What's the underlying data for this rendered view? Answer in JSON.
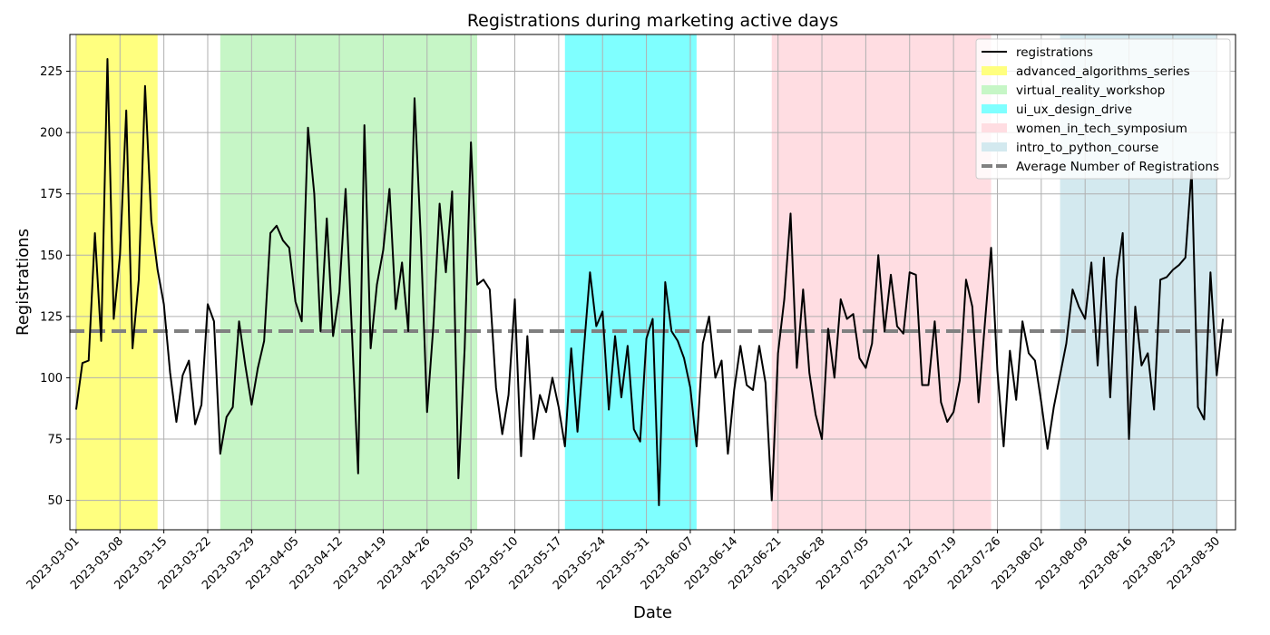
{
  "chart_data": {
    "type": "line",
    "title": "Registrations during marketing active days",
    "xlabel": "Date",
    "ylabel": "Registrations",
    "x_start": "2023-03-01",
    "x_end": "2023-08-30",
    "xlim": [
      "2023-02-28",
      "2023-09-02"
    ],
    "ylim": [
      38,
      240
    ],
    "yticks": [
      50,
      75,
      100,
      125,
      150,
      175,
      200,
      225
    ],
    "xticks": [
      "2023-03-01",
      "2023-03-08",
      "2023-03-15",
      "2023-03-22",
      "2023-03-29",
      "2023-04-05",
      "2023-04-12",
      "2023-04-19",
      "2023-04-26",
      "2023-05-03",
      "2023-05-10",
      "2023-05-17",
      "2023-05-24",
      "2023-05-31",
      "2023-06-07",
      "2023-06-14",
      "2023-06-21",
      "2023-06-28",
      "2023-07-05",
      "2023-07-12",
      "2023-07-19",
      "2023-07-26",
      "2023-08-02",
      "2023-08-09",
      "2023-08-16",
      "2023-08-23",
      "2023-08-30"
    ],
    "grid": true,
    "legend_position": "top-right",
    "series": [
      {
        "name": "registrations",
        "color": "#000000",
        "values": [
          87,
          106,
          107,
          159,
          115,
          230,
          124,
          150,
          209,
          112,
          140,
          219,
          164,
          144,
          130,
          102,
          82,
          101,
          107,
          81,
          89,
          130,
          123,
          69,
          84,
          88,
          123,
          105,
          89,
          104,
          115,
          159,
          162,
          156,
          153,
          131,
          123,
          202,
          175,
          119,
          165,
          117,
          135,
          177,
          119,
          61,
          203,
          112,
          138,
          152,
          177,
          128,
          147,
          119,
          214,
          157,
          86,
          121,
          171,
          143,
          176,
          59,
          112,
          196,
          138,
          140,
          136,
          96,
          77,
          93,
          132,
          68,
          117,
          75,
          93,
          86,
          100,
          88,
          72,
          112,
          78,
          111,
          143,
          121,
          127,
          87,
          117,
          92,
          113,
          79,
          74,
          116,
          124,
          48,
          139,
          119,
          115,
          108,
          96,
          72,
          114,
          125,
          100,
          107,
          69,
          95,
          113,
          97,
          95,
          113,
          98,
          50,
          110,
          132,
          167,
          104,
          136,
          102,
          85,
          75,
          120,
          100,
          132,
          124,
          126,
          108,
          104,
          114,
          150,
          119,
          142,
          121,
          118,
          143,
          142,
          97,
          97,
          123,
          90,
          82,
          86,
          99,
          140,
          129,
          90,
          122,
          153,
          103,
          72,
          111,
          91,
          123,
          110,
          107,
          90,
          71,
          88,
          101,
          114,
          136,
          129,
          124,
          147,
          105,
          149,
          92,
          140,
          159,
          75,
          129,
          105,
          110,
          87,
          140,
          141,
          144,
          146,
          149,
          185,
          88,
          83,
          143,
          101,
          124
        ]
      },
      {
        "name": "Average Number of Registrations",
        "color": "#808080",
        "style": "dashed",
        "value": 119
      }
    ],
    "campaigns": [
      {
        "name": "advanced_algorithms_series",
        "color": "#ffff7f",
        "start": "2023-03-01",
        "end": "2023-03-14"
      },
      {
        "name": "virtual_reality_workshop",
        "color": "#c6f6c6",
        "start": "2023-03-24",
        "end": "2023-05-04"
      },
      {
        "name": "ui_ux_design_drive",
        "color": "#7fffff",
        "start": "2023-05-18",
        "end": "2023-06-08"
      },
      {
        "name": "women_in_tech_symposium",
        "color": "#ffdde2",
        "start": "2023-06-20",
        "end": "2023-07-25"
      },
      {
        "name": "intro_to_python_course",
        "color": "#d3e9ef",
        "start": "2023-08-05",
        "end": "2023-08-30"
      }
    ]
  }
}
